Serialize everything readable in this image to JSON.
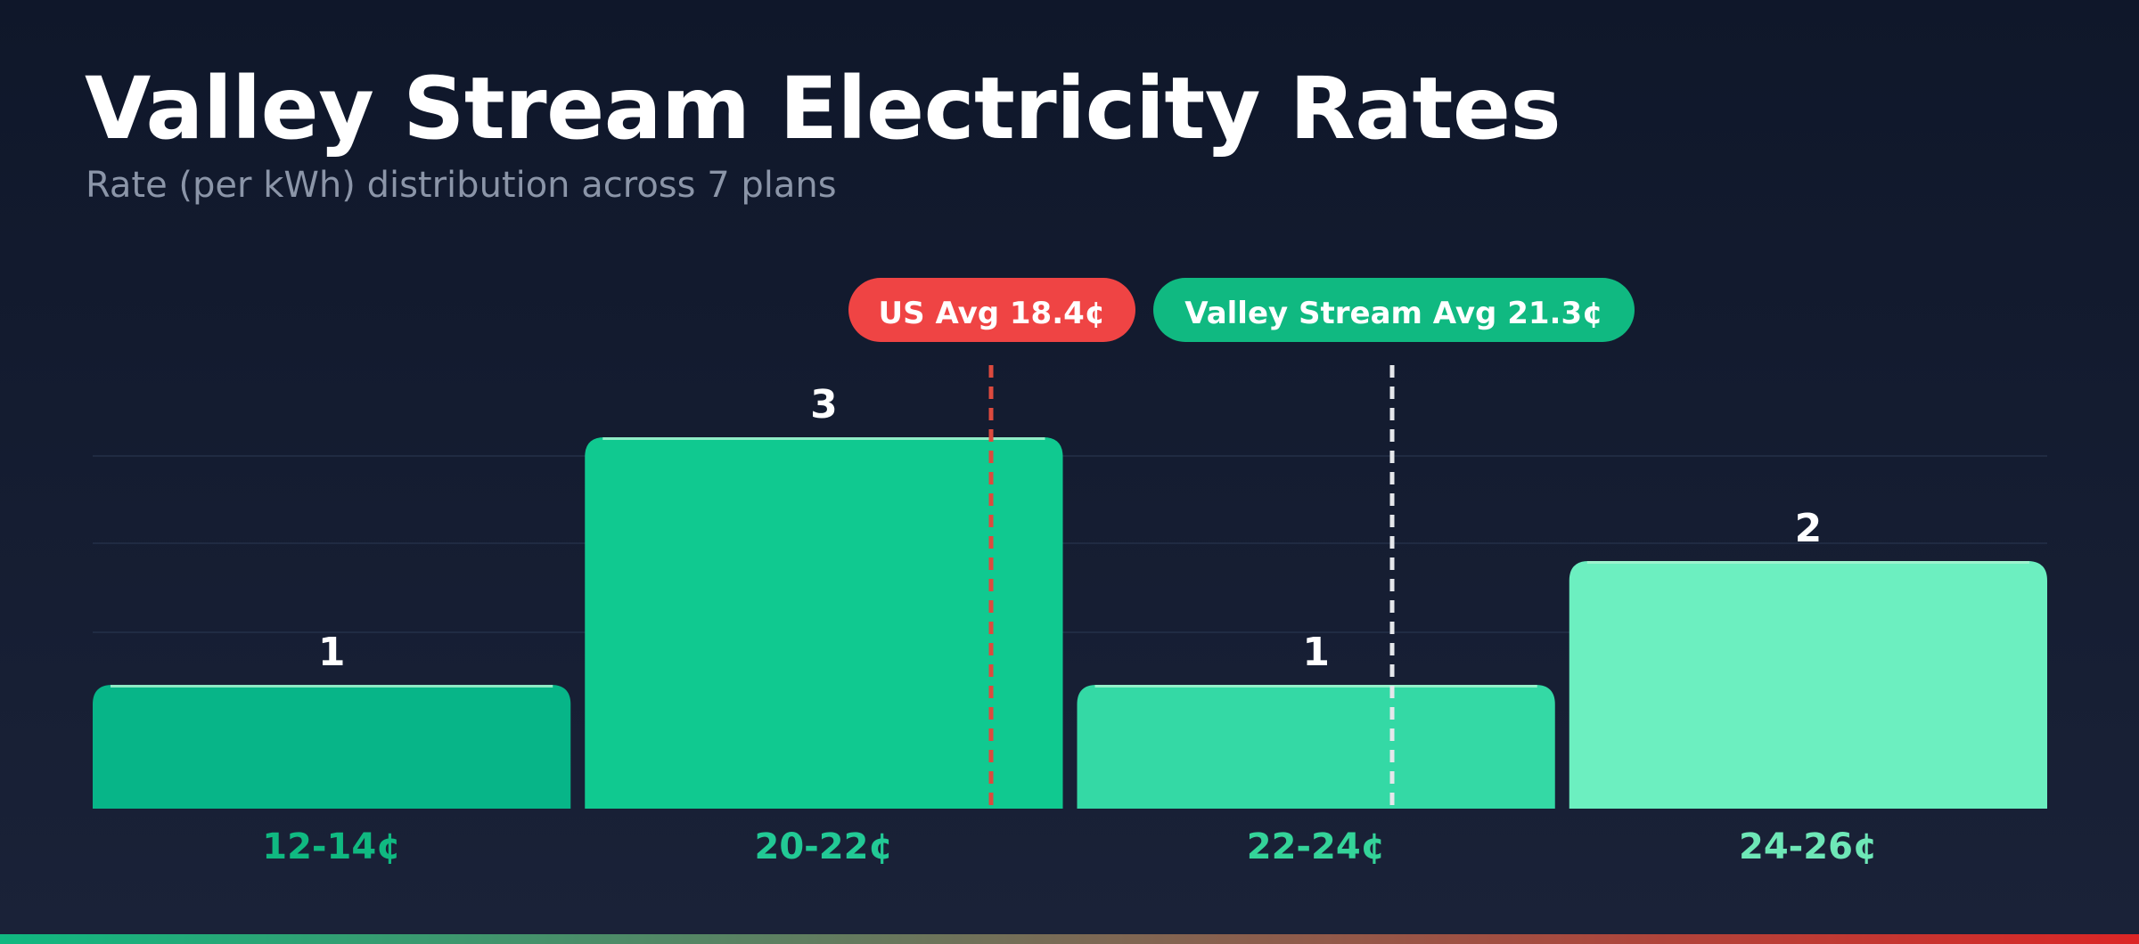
{
  "header": {
    "title": "Valley Stream Electricity Rates",
    "subtitle": "Rate (per kWh) distribution across 7 plans"
  },
  "colors": {
    "background_top": "#0f172a",
    "background_bottom": "#1a2238",
    "us_avg": "#ef4444",
    "local_avg": "#10b981",
    "bottom_bar_start": "#10b981",
    "bottom_bar_end": "#dc2626"
  },
  "chart_data": {
    "type": "bar",
    "title": "Valley Stream Electricity Rates",
    "subtitle": "Rate (per kWh) distribution across 7 plans",
    "categories": [
      "12-14¢",
      "20-22¢",
      "22-24¢",
      "24-26¢"
    ],
    "values": [
      1,
      3,
      1,
      2
    ],
    "value_labels": [
      "1",
      "3",
      "1",
      "2"
    ],
    "bar_colors": [
      "#07b588",
      "#10c990",
      "#34d9a5",
      "#6cefc0"
    ],
    "label_colors": [
      "#10b981",
      "#22c995",
      "#34d399",
      "#6ee7b7"
    ],
    "ylim": [
      0,
      3.5
    ],
    "grid": true,
    "xlabel": "",
    "ylabel": "",
    "reference_lines": [
      {
        "label": "US Avg 18.4¢",
        "value": 18.4,
        "color": "#ef4444",
        "line_color": "#dc4a3e"
      },
      {
        "label": "Valley Stream Avg 21.3¢",
        "value": 21.3,
        "color": "#10b981",
        "line_color": "#e5e7eb"
      }
    ]
  }
}
